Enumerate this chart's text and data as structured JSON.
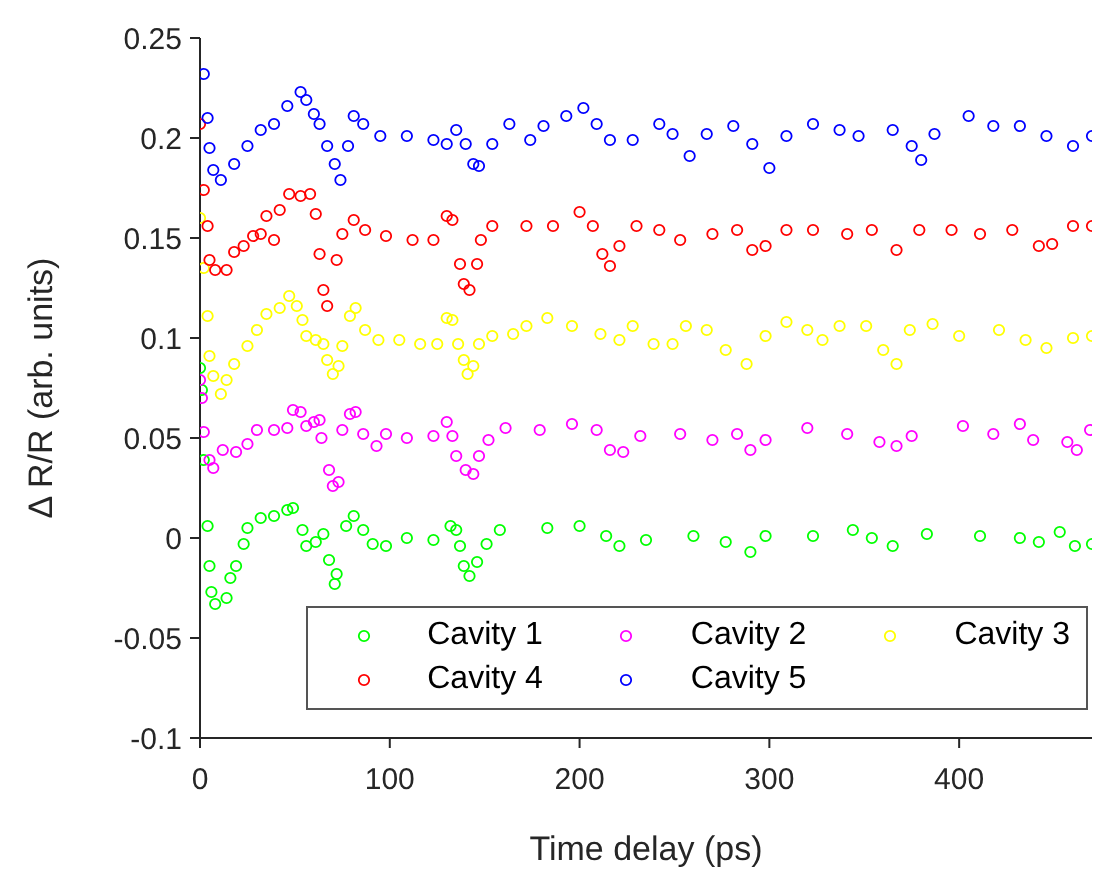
{
  "chart_data": {
    "type": "scatter",
    "xlabel": "Time delay (ps)",
    "ylabel": "Δ R/R (arb. units)",
    "xlim": [
      0,
      470
    ],
    "xticks": [
      0,
      100,
      200,
      300,
      400
    ],
    "ylim": [
      -0.1,
      0.25
    ],
    "yticks": [
      -0.1,
      -0.05,
      0,
      0.05,
      0.1,
      0.15,
      0.2,
      0.25
    ],
    "grid": false,
    "legend": "bottom right",
    "marker": "circle",
    "series": [
      {
        "name": "Cavity 1",
        "color": "#00ff00",
        "x": [
          0,
          1,
          2,
          4,
          5,
          6,
          8,
          14,
          16,
          19,
          23,
          25,
          32,
          39,
          46,
          49,
          54,
          56,
          61,
          65,
          68,
          71,
          72,
          77,
          81,
          86,
          91,
          98,
          109,
          123,
          132,
          135,
          137,
          139,
          142,
          146,
          151,
          158,
          183,
          200,
          214,
          221,
          235,
          260,
          277,
          290,
          298,
          323,
          344,
          354,
          365,
          383,
          411,
          432,
          442,
          453,
          461,
          470
        ],
        "values": [
          0.085,
          0.074,
          0.039,
          0.006,
          -0.014,
          -0.027,
          -0.033,
          -0.03,
          -0.02,
          -0.014,
          -0.003,
          0.005,
          0.01,
          0.011,
          0.014,
          0.015,
          0.004,
          -0.004,
          -0.002,
          0.002,
          -0.011,
          -0.023,
          -0.018,
          0.006,
          0.011,
          0.004,
          -0.003,
          -0.004,
          0,
          -0.001,
          0.006,
          0.004,
          -0.004,
          -0.014,
          -0.019,
          -0.012,
          -0.003,
          0.004,
          0.005,
          0.006,
          0.001,
          -0.004,
          -0.001,
          0.001,
          -0.002,
          -0.007,
          0.001,
          0.001,
          0.004,
          0,
          -0.004,
          0.002,
          0.001,
          0,
          -0.002,
          0.003,
          -0.004,
          -0.003
        ]
      },
      {
        "name": "Cavity 2",
        "color": "#ff00ff",
        "x": [
          0,
          1,
          2,
          5,
          7,
          12,
          19,
          25,
          30,
          39,
          46,
          49,
          53,
          56,
          60,
          63,
          64,
          68,
          70,
          73,
          75,
          79,
          82,
          86,
          93,
          98,
          109,
          123,
          130,
          133,
          135,
          140,
          144,
          147,
          152,
          161,
          179,
          196,
          209,
          216,
          223,
          232,
          253,
          270,
          283,
          290,
          298,
          320,
          341,
          358,
          367,
          375,
          402,
          418,
          432,
          439,
          457,
          462,
          469
        ],
        "values": [
          0.079,
          0.07,
          0.053,
          0.039,
          0.035,
          0.044,
          0.043,
          0.047,
          0.054,
          0.054,
          0.055,
          0.064,
          0.063,
          0.056,
          0.058,
          0.059,
          0.05,
          0.034,
          0.026,
          0.028,
          0.054,
          0.062,
          0.063,
          0.052,
          0.046,
          0.052,
          0.05,
          0.051,
          0.058,
          0.051,
          0.041,
          0.034,
          0.032,
          0.041,
          0.049,
          0.055,
          0.054,
          0.057,
          0.054,
          0.044,
          0.043,
          0.051,
          0.052,
          0.049,
          0.052,
          0.044,
          0.049,
          0.055,
          0.052,
          0.048,
          0.046,
          0.051,
          0.056,
          0.052,
          0.057,
          0.049,
          0.048,
          0.044,
          0.054
        ]
      },
      {
        "name": "Cavity 3",
        "color": "#ffff00",
        "x": [
          0,
          2,
          4,
          5,
          7,
          11,
          14,
          18,
          25,
          30,
          35,
          42,
          47,
          51,
          54,
          56,
          61,
          65,
          67,
          70,
          73,
          75,
          79,
          82,
          87,
          94,
          105,
          116,
          125,
          130,
          133,
          136,
          139,
          141,
          144,
          147,
          154,
          165,
          172,
          183,
          196,
          211,
          221,
          228,
          239,
          249,
          256,
          267,
          277,
          288,
          298,
          309,
          320,
          328,
          337,
          351,
          360,
          367,
          374,
          386,
          400,
          421,
          435,
          446,
          460,
          470
        ],
        "values": [
          0.16,
          0.135,
          0.111,
          0.091,
          0.081,
          0.072,
          0.079,
          0.087,
          0.096,
          0.104,
          0.112,
          0.115,
          0.121,
          0.116,
          0.109,
          0.101,
          0.099,
          0.097,
          0.089,
          0.082,
          0.086,
          0.096,
          0.111,
          0.115,
          0.104,
          0.099,
          0.099,
          0.097,
          0.097,
          0.11,
          0.109,
          0.097,
          0.089,
          0.082,
          0.086,
          0.097,
          0.101,
          0.102,
          0.106,
          0.11,
          0.106,
          0.102,
          0.099,
          0.106,
          0.097,
          0.097,
          0.106,
          0.104,
          0.094,
          0.087,
          0.101,
          0.108,
          0.104,
          0.099,
          0.106,
          0.106,
          0.094,
          0.087,
          0.104,
          0.107,
          0.101,
          0.104,
          0.099,
          0.095,
          0.1,
          0.101
        ]
      },
      {
        "name": "Cavity 4",
        "color": "#ff0000",
        "x": [
          0,
          2,
          4,
          5,
          8,
          14,
          18,
          23,
          28,
          32,
          35,
          39,
          42,
          47,
          53,
          58,
          61,
          63,
          65,
          67,
          72,
          75,
          81,
          87,
          98,
          112,
          123,
          130,
          133,
          137,
          139,
          142,
          146,
          148,
          154,
          172,
          186,
          200,
          207,
          212,
          216,
          221,
          230,
          242,
          253,
          270,
          283,
          291,
          298,
          309,
          323,
          341,
          354,
          367,
          379,
          396,
          411,
          428,
          442,
          449,
          460,
          470
        ],
        "values": [
          0.207,
          0.174,
          0.156,
          0.139,
          0.134,
          0.134,
          0.143,
          0.146,
          0.151,
          0.152,
          0.161,
          0.149,
          0.164,
          0.172,
          0.171,
          0.172,
          0.162,
          0.142,
          0.124,
          0.116,
          0.139,
          0.152,
          0.159,
          0.154,
          0.151,
          0.149,
          0.149,
          0.161,
          0.159,
          0.137,
          0.127,
          0.124,
          0.137,
          0.149,
          0.156,
          0.156,
          0.156,
          0.163,
          0.156,
          0.142,
          0.136,
          0.146,
          0.156,
          0.154,
          0.149,
          0.152,
          0.154,
          0.144,
          0.146,
          0.154,
          0.154,
          0.152,
          0.154,
          0.144,
          0.154,
          0.154,
          0.152,
          0.154,
          0.146,
          0.147,
          0.156,
          0.156
        ]
      },
      {
        "name": "Cavity 5",
        "color": "#0000ff",
        "x": [
          2,
          4,
          5,
          7,
          11,
          18,
          25,
          32,
          39,
          46,
          53,
          56,
          60,
          63,
          67,
          71,
          74,
          78,
          81,
          86,
          95,
          109,
          123,
          130,
          135,
          140,
          144,
          147,
          154,
          163,
          174,
          181,
          193,
          202,
          209,
          216,
          228,
          242,
          249,
          258,
          267,
          281,
          291,
          300,
          309,
          323,
          337,
          347,
          365,
          375,
          380,
          387,
          405,
          418,
          432,
          446,
          460,
          470
        ],
        "values": [
          0.232,
          0.21,
          0.195,
          0.184,
          0.179,
          0.187,
          0.196,
          0.204,
          0.207,
          0.216,
          0.223,
          0.219,
          0.212,
          0.207,
          0.196,
          0.187,
          0.179,
          0.196,
          0.211,
          0.207,
          0.201,
          0.201,
          0.199,
          0.197,
          0.204,
          0.197,
          0.187,
          0.186,
          0.197,
          0.207,
          0.199,
          0.206,
          0.211,
          0.215,
          0.207,
          0.199,
          0.199,
          0.207,
          0.202,
          0.191,
          0.202,
          0.206,
          0.197,
          0.185,
          0.201,
          0.207,
          0.204,
          0.201,
          0.204,
          0.196,
          0.189,
          0.202,
          0.211,
          0.206,
          0.206,
          0.201,
          0.196,
          0.201
        ]
      }
    ]
  }
}
